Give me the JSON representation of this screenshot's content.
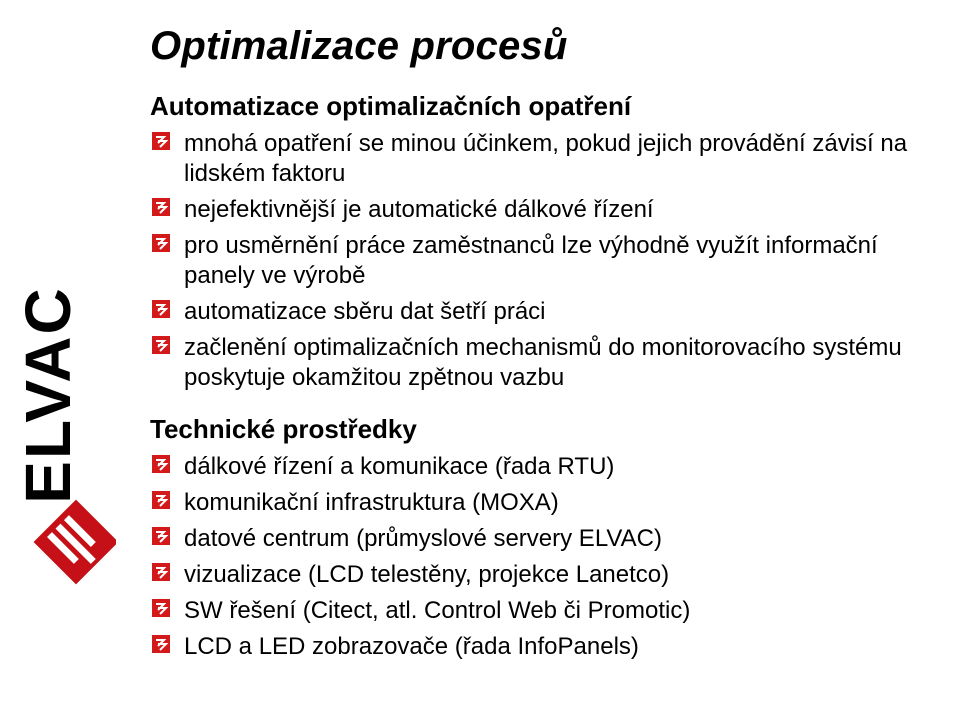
{
  "title": "Optimalizace procesů",
  "section1_heading": "Automatizace optimalizačních opatření",
  "section2_heading": "Technické prostředky",
  "bullets1": [
    "mnohá opatření se minou účinkem, pokud jejich provádění závisí na lidském faktoru",
    "nejefektivnější je automatické dálkové řízení",
    "pro usměrnění práce zaměstnanců lze výhodně využít informační panely ve výrobě",
    "automatizace sběru dat šetří práci",
    "začlenění optimalizačních mechanismů do monitorovacího systému poskytuje okamžitou zpětnou vazbu"
  ],
  "bullets2": [
    "dálkové řízení a komunikace (řada RTU)",
    "komunikační infrastruktura (MOXA)",
    "datové centrum (průmyslové servery ELVAC)",
    "vizualizace (LCD telestěny, projekce Lanetco)",
    "SW řešení (Citect, atl. Control Web či Promotic)",
    "LCD a LED zobrazovače (řada InfoPanels)"
  ],
  "marker_color": "#d21a1a",
  "marker_inner": "#ffffff",
  "logo_color": "#c41016",
  "logo_text": "ELVAC"
}
